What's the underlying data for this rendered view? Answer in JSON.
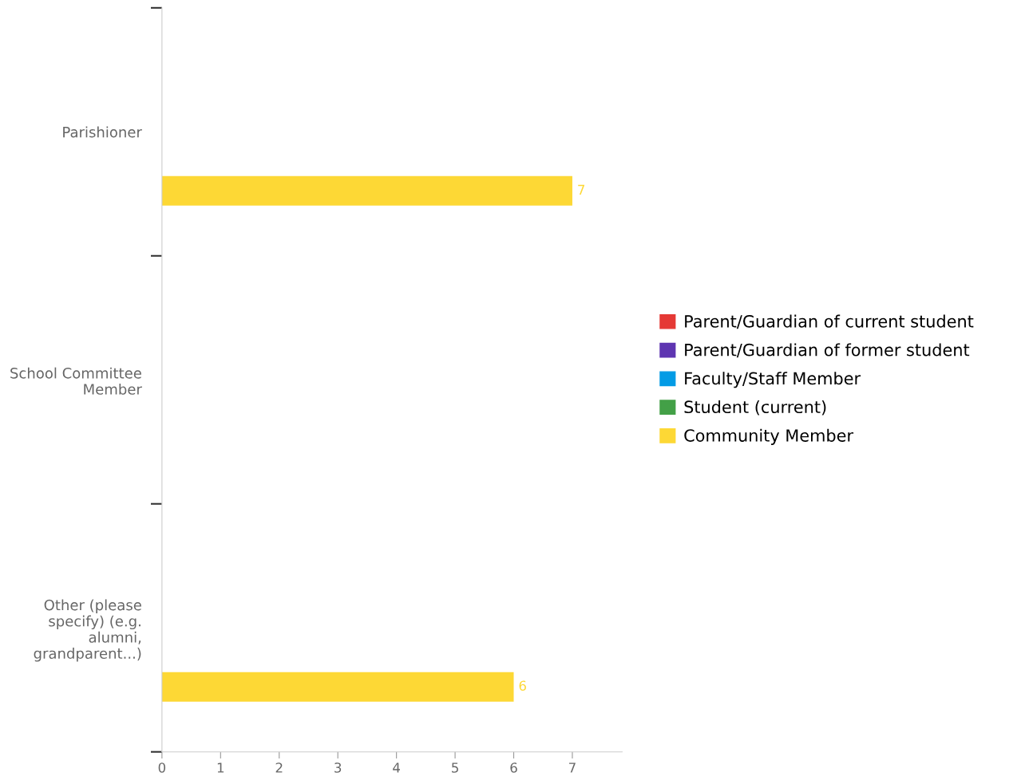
{
  "chart_data": {
    "type": "bar",
    "orientation": "horizontal",
    "categories": [
      "Parishioner",
      "School Committee Member",
      "Other (please specify) (e.g. alumni, grandparent...)"
    ],
    "series": [
      {
        "name": "Parent/Guardian of current student",
        "color": "#e53935",
        "values": [
          null,
          null,
          null
        ]
      },
      {
        "name": "Parent/Guardian of former student",
        "color": "#5e35b1",
        "values": [
          null,
          null,
          null
        ]
      },
      {
        "name": "Faculty/Staff Member",
        "color": "#039be5",
        "values": [
          null,
          null,
          null
        ]
      },
      {
        "name": "Student (current)",
        "color": "#43a047",
        "values": [
          null,
          null,
          null
        ]
      },
      {
        "name": "Community Member",
        "color": "#fdd835",
        "values": [
          7,
          null,
          6
        ]
      }
    ],
    "xlim": [
      0,
      7.85
    ],
    "xticks": [
      0,
      1,
      2,
      3,
      4,
      5,
      6,
      7
    ],
    "data_labels": true,
    "grid": false,
    "legend": "right"
  }
}
